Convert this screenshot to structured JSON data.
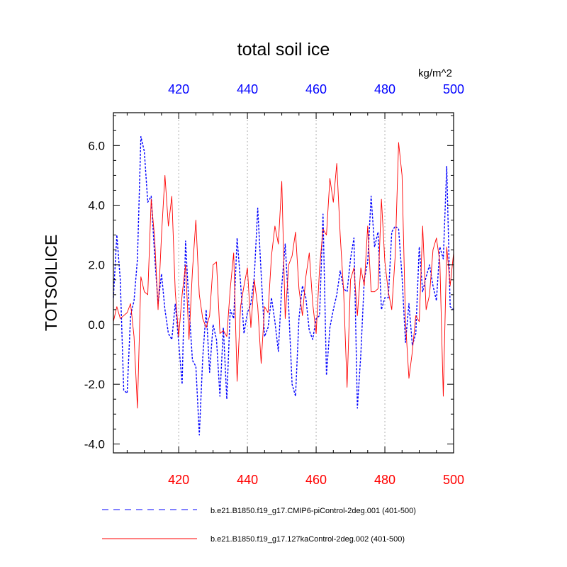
{
  "chart_data": {
    "type": "line",
    "title": "total soil ice",
    "units": "kg/m^2",
    "ylabel": "TOTSOILICE",
    "xlabel": "",
    "xlim": [
      401,
      500
    ],
    "ylim": [
      -4.3,
      7.1
    ],
    "grid": "vertical dotted lines at major x ticks",
    "x_ticks": [
      420,
      440,
      460,
      480,
      500
    ],
    "x_tick_labels": [
      "420",
      "440",
      "460",
      "480",
      "500"
    ],
    "y_ticks": [
      -4,
      -2,
      0,
      2,
      4,
      6
    ],
    "y_tick_labels": [
      "-4.0",
      "-2.0",
      "0.0",
      "2.0",
      "4.0",
      "6.0"
    ],
    "colors": {
      "bottom_axis": "#ff0000",
      "top_axis": "#0000ff"
    },
    "legend_position": "bottom",
    "x": [
      401,
      402,
      403,
      404,
      405,
      406,
      407,
      408,
      409,
      410,
      411,
      412,
      413,
      414,
      415,
      416,
      417,
      418,
      419,
      420,
      421,
      422,
      423,
      424,
      425,
      426,
      427,
      428,
      429,
      430,
      431,
      432,
      433,
      434,
      435,
      436,
      437,
      438,
      439,
      440,
      441,
      442,
      443,
      444,
      445,
      446,
      447,
      448,
      449,
      450,
      451,
      452,
      453,
      454,
      455,
      456,
      457,
      458,
      459,
      460,
      461,
      462,
      463,
      464,
      465,
      466,
      467,
      468,
      469,
      470,
      471,
      472,
      473,
      474,
      475,
      476,
      477,
      478,
      479,
      480,
      481,
      482,
      483,
      484,
      485,
      486,
      487,
      488,
      489,
      490,
      491,
      492,
      493,
      494,
      495,
      496,
      497,
      498,
      499,
      500
    ],
    "series": [
      {
        "name": "b.e21.B1850.f19_g17.CMIP6-piControl-2deg.001 (401-500)",
        "color": "#0000ff",
        "dash": "dashed",
        "values": [
          0.9,
          3.0,
          1.5,
          -2.2,
          -2.3,
          0.3,
          0.8,
          2.2,
          6.3,
          5.8,
          4.1,
          4.3,
          2.3,
          0.7,
          1.7,
          0.5,
          -0.3,
          -0.5,
          0.7,
          -0.6,
          -2.0,
          2.8,
          0.6,
          -1.2,
          -1.4,
          -3.7,
          -1.1,
          0.5,
          -1.6,
          0.0,
          -0.5,
          -2.4,
          -0.1,
          -2.5,
          0.5,
          0.2,
          2.9,
          1.4,
          -0.3,
          0.4,
          0.7,
          1.6,
          3.9,
          1.7,
          -0.4,
          -0.1,
          0.9,
          0.1,
          -0.9,
          1.3,
          2.7,
          0.6,
          -2.0,
          -2.4,
          0.2,
          1.3,
          0.9,
          -0.2,
          -0.5,
          0.2,
          0.3,
          3.7,
          -1.7,
          -0.1,
          0.5,
          1.0,
          1.8,
          1.2,
          1.1,
          2.2,
          2.9,
          -2.8,
          -1.0,
          1.5,
          2.1,
          4.3,
          2.6,
          3.1,
          0.5,
          0.9,
          0.9,
          3.1,
          3.3,
          3.2,
          1.6,
          -0.6,
          0.7,
          -0.7,
          -0.3,
          2.6,
          1.1,
          1.6,
          2.0,
          1.3,
          0.8,
          2.6,
          2.2,
          5.3,
          0.6,
          0.5
        ]
      },
      {
        "name": "b.e21.B1850.f19_g17.127kaControl-2deg.002 (401-500)",
        "color": "#ff0000",
        "dash": "solid",
        "values": [
          0.1,
          0.6,
          0.2,
          0.3,
          0.4,
          0.7,
          -0.4,
          -2.8,
          1.6,
          1.1,
          1.0,
          4.2,
          2.9,
          0.5,
          3.0,
          5.0,
          3.3,
          4.3,
          1.1,
          -0.4,
          1.0,
          2.0,
          -0.5,
          1.8,
          3.5,
          1.0,
          0.2,
          -0.1,
          0.3,
          2.0,
          2.1,
          -0.3,
          -0.2,
          -0.4,
          1.2,
          2.4,
          -1.9,
          0.6,
          1.3,
          1.9,
          -0.1,
          1.5,
          0.6,
          -1.3,
          0.6,
          0.4,
          2.3,
          3.3,
          2.7,
          4.8,
          0.2,
          2.0,
          2.3,
          3.1,
          1.2,
          0.3,
          1.6,
          2.4,
          0.7,
          -0.3,
          1.9,
          3.2,
          3.0,
          4.9,
          4.1,
          5.4,
          3.0,
          1.1,
          -2.1,
          1.5,
          1.9,
          0.3,
          1.9,
          1.3,
          3.3,
          1.1,
          1.1,
          1.2,
          4.2,
          2.1,
          1.1,
          0.5,
          2.3,
          6.1,
          5.0,
          0.1,
          -1.8,
          -0.9,
          0.3,
          0.1,
          3.3,
          0.5,
          1.0,
          2.5,
          2.9,
          2.1,
          -2.4,
          2.6,
          1.3,
          2.4
        ]
      }
    ]
  }
}
